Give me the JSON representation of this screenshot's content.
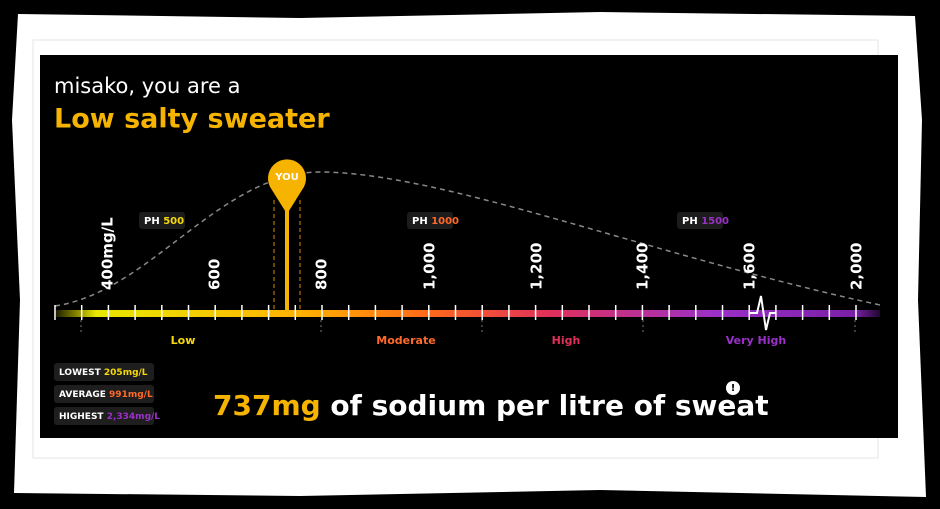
{
  "header": {
    "greeting": "misako, you are a",
    "result": "Low salty sweater"
  },
  "scale": {
    "pin": "YOU",
    "ticks": [
      "400mg/L",
      "600",
      "800",
      "1,000",
      "1,200",
      "1,400",
      "1,600",
      "2,000"
    ],
    "ph_markers": [
      {
        "prefix": "PH",
        "value": "500"
      },
      {
        "prefix": "PH",
        "value": "1000"
      },
      {
        "prefix": "PH",
        "value": "1500"
      }
    ],
    "zones": [
      "Low",
      "Moderate",
      "High",
      "Very High"
    ]
  },
  "stats": [
    {
      "label": "LOWEST",
      "value": "205mg/L"
    },
    {
      "label": "AVERAGE",
      "value": "991mg/L"
    },
    {
      "label": "HIGHEST",
      "value": "2,334mg/L"
    }
  ],
  "headline": {
    "amount": "737mg",
    "text": "of sodium per litre of sweat",
    "info_icon": "!"
  }
}
